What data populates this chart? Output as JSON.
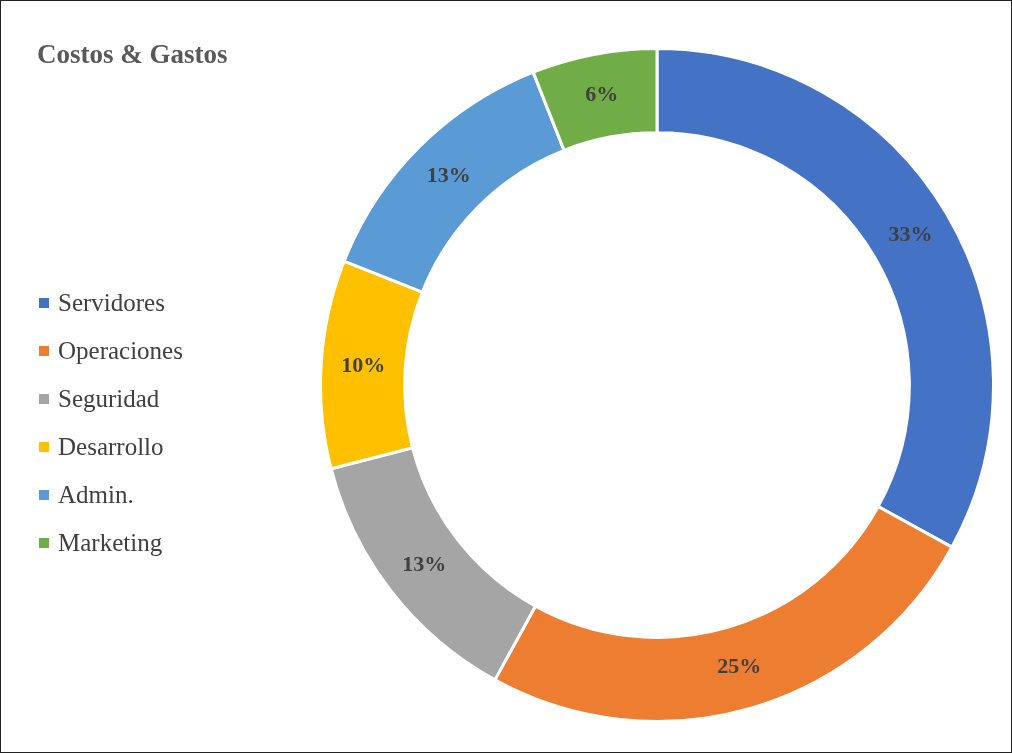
{
  "chart_data": {
    "type": "donut",
    "title": "Costos & Gastos",
    "categories": [
      "Servidores",
      "Operaciones",
      "Seguridad",
      "Desarrollo",
      "Admin.",
      "Marketing"
    ],
    "values": [
      33,
      25,
      13,
      10,
      13,
      6
    ],
    "colors": [
      "#4472c4",
      "#ed7d31",
      "#a5a5a5",
      "#ffc000",
      "#5b9bd5",
      "#70ad47"
    ],
    "value_labels": [
      "33%",
      "25%",
      "13%",
      "10%",
      "13%",
      "6%"
    ],
    "legend": "left"
  }
}
